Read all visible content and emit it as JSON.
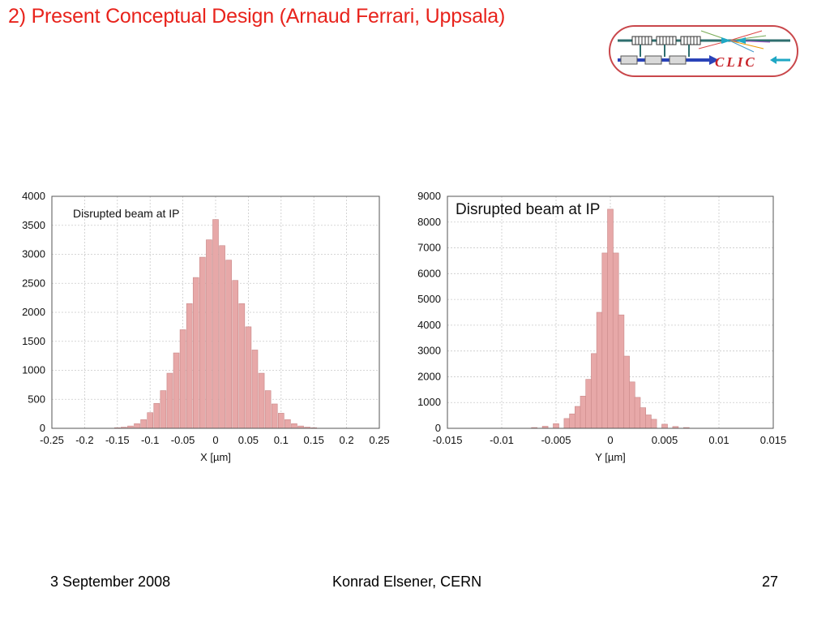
{
  "slide": {
    "title": "2) Present Conceptual Design (Arnaud Ferrari, Uppsala)",
    "logo_text": "CLIC",
    "accent_color": "#e8231c"
  },
  "footer": {
    "date": "3 September 2008",
    "author": "Konrad Elsener, CERN",
    "page_number": "27"
  },
  "chart_data": [
    {
      "type": "bar",
      "title": "Disrupted beam at IP",
      "xlabel": "X [µm]",
      "ylabel": "",
      "xlim": [
        -0.25,
        0.25
      ],
      "ylim": [
        0,
        4000
      ],
      "x_ticks": [
        "-0.25",
        "-0.2",
        "-0.15",
        "-0.1",
        "-0.05",
        "0",
        "0.05",
        "0.1",
        "0.15",
        "0.2",
        "0.25"
      ],
      "y_ticks": [
        "0",
        "500",
        "1000",
        "1500",
        "2000",
        "2500",
        "3000",
        "3500",
        "4000"
      ],
      "grid": true,
      "bar_color": "#e7a8a8",
      "series": [
        {
          "x": [
            -0.15,
            -0.14,
            -0.13,
            -0.12,
            -0.11,
            -0.1,
            -0.09,
            -0.08,
            -0.07,
            -0.06,
            -0.05,
            -0.04,
            -0.03,
            -0.02,
            -0.01,
            0,
            0.01,
            0.02,
            0.03,
            0.04,
            0.05,
            0.06,
            0.07,
            0.08,
            0.09,
            0.1,
            0.11,
            0.12,
            0.13,
            0.14,
            0.15
          ],
          "values": [
            10,
            20,
            40,
            80,
            150,
            270,
            430,
            650,
            950,
            1300,
            1700,
            2150,
            2600,
            2950,
            3250,
            3600,
            3150,
            2900,
            2550,
            2150,
            1750,
            1350,
            950,
            650,
            420,
            260,
            150,
            80,
            40,
            20,
            10
          ]
        }
      ]
    },
    {
      "type": "bar",
      "title": "Disrupted beam at IP",
      "xlabel": "Y [µm]",
      "ylabel": "",
      "xlim": [
        -0.015,
        0.015
      ],
      "ylim": [
        0,
        9000
      ],
      "x_ticks": [
        "-0.015",
        "-0.01",
        "-0.005",
        "0",
        "0.005",
        "0.01",
        "0.015"
      ],
      "y_ticks": [
        "0",
        "1000",
        "2000",
        "3000",
        "4000",
        "5000",
        "6000",
        "7000",
        "8000",
        "9000"
      ],
      "grid": true,
      "bar_color": "#e7a8a8",
      "series": [
        {
          "x": [
            -0.007,
            -0.006,
            -0.005,
            -0.004,
            -0.0035,
            -0.003,
            -0.0025,
            -0.002,
            -0.0015,
            -0.001,
            -0.0005,
            0,
            0.0005,
            0.001,
            0.0015,
            0.002,
            0.0025,
            0.003,
            0.0035,
            0.004,
            0.005,
            0.006,
            0.007
          ],
          "values": [
            30,
            80,
            180,
            380,
            560,
            850,
            1250,
            1900,
            2900,
            4500,
            6800,
            8500,
            6800,
            4400,
            2800,
            1800,
            1200,
            800,
            520,
            350,
            160,
            70,
            30
          ]
        }
      ]
    }
  ]
}
